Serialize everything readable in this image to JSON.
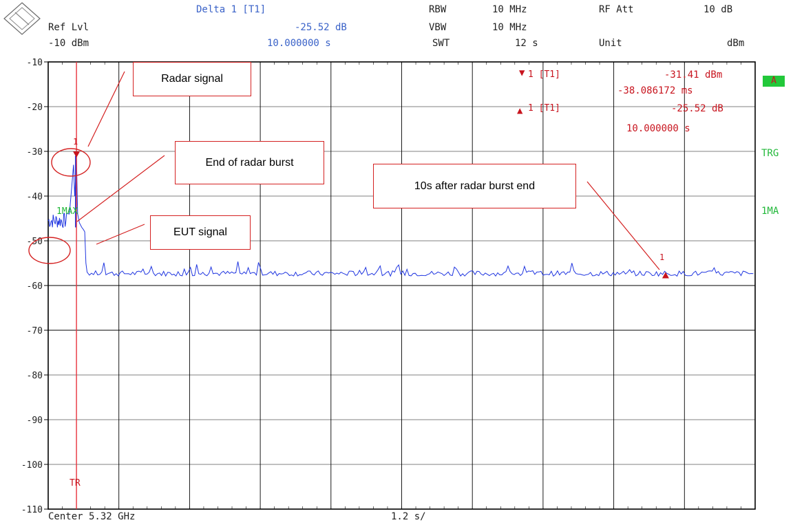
{
  "header": {
    "ref_lvl_label": "Ref Lvl",
    "ref_lvl_value": "-10 dBm",
    "delta_label": "Delta 1 [T1]",
    "delta_value": "-25.52 dB",
    "delta_time": "10.000000 s",
    "rbw_label": "RBW",
    "rbw_value": "10 MHz",
    "vbw_label": "VBW",
    "vbw_value": "10 MHz",
    "swt_label": "SWT",
    "swt_value": "12 s",
    "rfatt_label": "RF Att",
    "rfatt_value": "10 dB",
    "unit_label": "Unit",
    "unit_value": "dBm"
  },
  "markers": {
    "m1_tag": "1 [T1]",
    "m1_value": "-31.41 dBm",
    "m1_time": "-38.086172 ms",
    "d1_tag": "1 [T1]",
    "d1_value": "-25.52 dB",
    "d1_time": "10.000000 s"
  },
  "side_labels": {
    "a": "A",
    "trg": "TRG",
    "one_ma": "1MA"
  },
  "trace_labels": {
    "one_max": "1MAX",
    "tr": "TR",
    "marker_num": "1"
  },
  "footer": {
    "center": "Center 5.32 GHz",
    "span": "1.2 s/"
  },
  "callouts": {
    "radar_signal": "Radar signal",
    "end_burst": "End of radar burst",
    "after_10s": "10s after radar burst end",
    "eut_signal": "EUT signal"
  },
  "colors": {
    "trace": "#1f35e0",
    "marker": "#c8141e",
    "label_blue": "#3a62c8",
    "green": "#22b83a"
  },
  "chart_data": {
    "type": "line",
    "ylim": [
      -110,
      -10
    ],
    "yticks": [
      "-10",
      "-20",
      "-30",
      "-40",
      "-50",
      "-60",
      "-70",
      "-80",
      "-90",
      "-100",
      "-110"
    ],
    "xlim": [
      0,
      12
    ],
    "x_divisions": 10,
    "x_unit": "s",
    "series": [
      {
        "name": "1MAX",
        "baseline": -57.3,
        "segments": [
          {
            "x": [
              0.0,
              0.3
            ],
            "y": [
              -46,
              -45
            ]
          },
          {
            "x": [
              0.48
            ],
            "y": [
              -31.41
            ]
          },
          {
            "x": [
              0.62
            ],
            "y": [
              -48
            ]
          },
          {
            "x": [
              0.7,
              12.0
            ],
            "y": [
              -57.3,
              -57.3
            ]
          }
        ]
      }
    ],
    "marker1": {
      "x": 0.48,
      "y": -31.41
    },
    "delta1": {
      "x": 10.48,
      "y": -57.0
    },
    "trigger_x": 0.48
  }
}
